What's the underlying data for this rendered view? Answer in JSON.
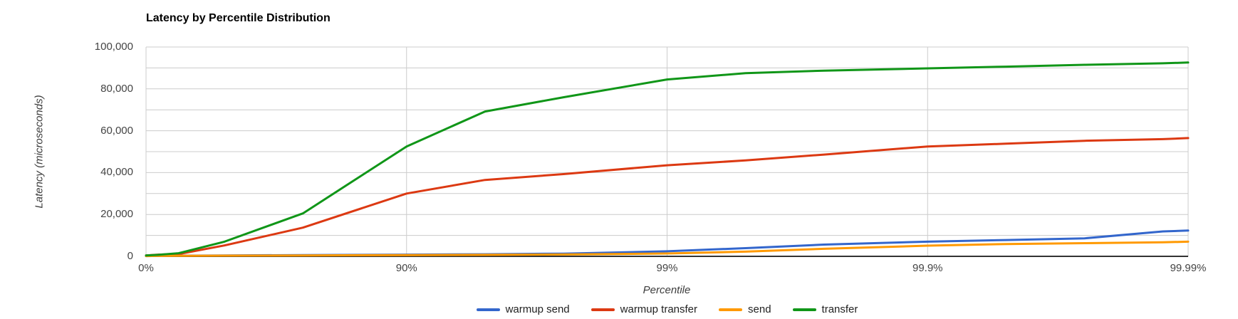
{
  "chart": {
    "title": "Latency by Percentile Distribution",
    "y_axis_title": "Latency (microseconds)",
    "x_axis_title": "Percentile"
  },
  "colors": {
    "background": "#ffffff",
    "gridline": "#cccccc",
    "baseline": "#333333",
    "tick_text": "#444444",
    "axis_title_text": "#3c3c3c",
    "title_text": "#000000",
    "legend_text": "#222222"
  },
  "chart_data": {
    "type": "line",
    "title": "Latency by Percentile Distribution",
    "xlabel": "Percentile",
    "ylabel": "Latency (microseconds)",
    "x_scale": "logarithmic in 1/(1-percentile), one decade per tick",
    "ylim": [
      0,
      100000
    ],
    "y_gridline_step": 10000,
    "grid": true,
    "legend_position": "bottom",
    "y_ticks": [
      {
        "label": "0",
        "value": 0
      },
      {
        "label": "20,000",
        "value": 20000
      },
      {
        "label": "40,000",
        "value": 40000
      },
      {
        "label": "60,000",
        "value": 60000
      },
      {
        "label": "80,000",
        "value": 80000
      },
      {
        "label": "100,000",
        "value": 100000
      }
    ],
    "x_ticks": [
      {
        "label": "0%",
        "percentile": 0
      },
      {
        "label": "90%",
        "percentile": 90
      },
      {
        "label": "99%",
        "percentile": 99
      },
      {
        "label": "99.9%",
        "percentile": 99.9
      },
      {
        "label": "99.99%",
        "percentile": 99.99
      }
    ],
    "percentiles": [
      0,
      10,
      25,
      50,
      75,
      90,
      95,
      97.5,
      99,
      99.5,
      99.75,
      99.9,
      99.95,
      99.975,
      99.9875,
      99.99
    ],
    "series": [
      {
        "name": "warmup send",
        "color": "#3366cc",
        "values": [
          150,
          200,
          300,
          400,
          600,
          800,
          1000,
          1300,
          2400,
          3900,
          5600,
          7000,
          7800,
          8600,
          11900,
          12300
        ]
      },
      {
        "name": "warmup transfer",
        "color": "#dc3912",
        "values": [
          400,
          800,
          1100,
          5200,
          13700,
          30000,
          36500,
          39300,
          43500,
          45800,
          48600,
          52500,
          53800,
          55200,
          56000,
          56500
        ]
      },
      {
        "name": "send",
        "color": "#ff9900",
        "values": [
          150,
          200,
          250,
          350,
          450,
          600,
          700,
          900,
          1350,
          2250,
          3600,
          5100,
          5900,
          6300,
          6700,
          7000
        ]
      },
      {
        "name": "transfer",
        "color": "#109618",
        "values": [
          400,
          700,
          1500,
          7000,
          20500,
          52500,
          69200,
          76000,
          84500,
          87500,
          88700,
          89800,
          90600,
          91500,
          92200,
          92600
        ]
      }
    ]
  }
}
